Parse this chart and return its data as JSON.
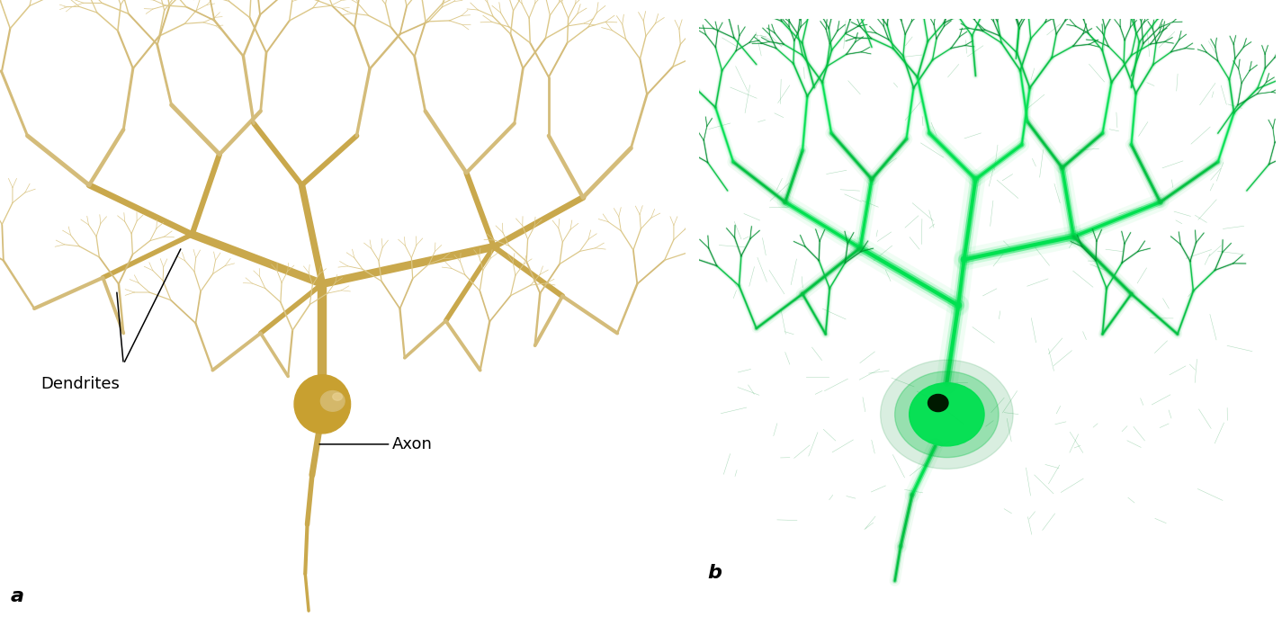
{
  "figure_width": 14.25,
  "figure_height": 6.86,
  "dpi": 100,
  "background_color": "#ffffff",
  "panel_a": {
    "label": "a",
    "label_fontsize": 16,
    "label_fontweight": "bold",
    "annotation_dendrites": "Dendrites",
    "annotation_axon": "Axon",
    "annotation_fontsize": 13
  },
  "panel_b": {
    "label": "b",
    "label_fontsize": 16,
    "label_fontweight": "bold"
  },
  "illustration_bg": "#ffffff",
  "micro_bg": "#011a01",
  "dendrite_color_main": "#c9a84c",
  "dendrite_color_mid": "#c8a84e",
  "dendrite_color_light": "#d4bc7a",
  "dendrite_color_fine": "#dcc88a",
  "cell_body_color": "#c8a030",
  "nucleus_color": "#d4b86a",
  "nucleus_highlight": "#e8d090",
  "green_bright": "#00e050",
  "green_mid": "#00c040",
  "green_dim": "#009030",
  "green_bg": "#011601"
}
